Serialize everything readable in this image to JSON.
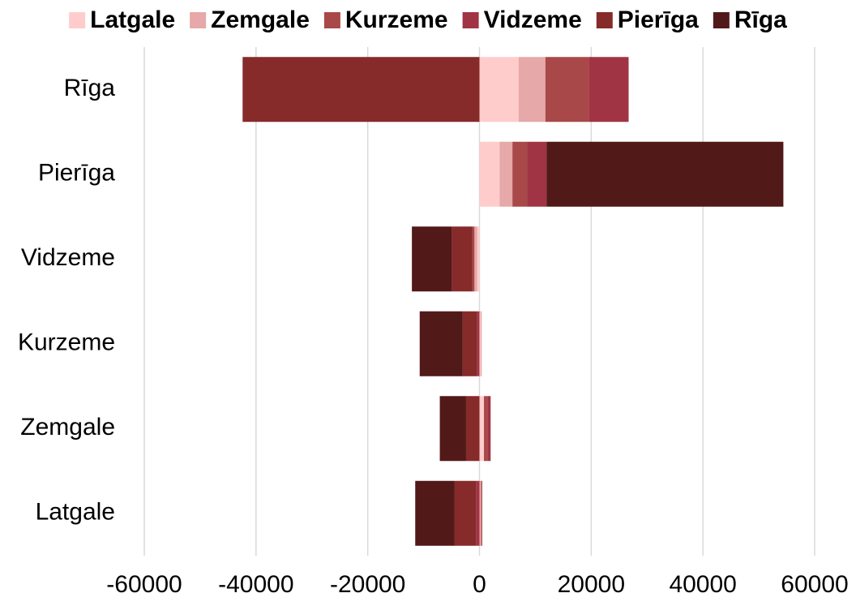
{
  "chart_data": {
    "type": "bar",
    "orientation": "horizontal",
    "stacked": true,
    "categories": [
      "Rīga",
      "Pierīga",
      "Vidzeme",
      "Kurzeme",
      "Zemgale",
      "Latgale"
    ],
    "series": [
      {
        "name": "Latgale",
        "color": "#ffcccc",
        "values": [
          7000,
          3600,
          -400,
          200,
          800,
          0
        ]
      },
      {
        "name": "Zemgale",
        "color": "#e6a8a8",
        "values": [
          4800,
          2300,
          -500,
          200,
          0,
          300
        ]
      },
      {
        "name": "Kurzeme",
        "color": "#a94848",
        "values": [
          7800,
          2600,
          -400,
          0,
          600,
          200
        ]
      },
      {
        "name": "Vidzeme",
        "color": "#a13444",
        "values": [
          7100,
          3500,
          0,
          -400,
          600,
          -600
        ]
      },
      {
        "name": "Pierīga",
        "color": "#862a2a",
        "values": [
          -42400,
          0,
          -3700,
          -2600,
          -2400,
          -3900
        ]
      },
      {
        "name": "Rīga",
        "color": "#521919",
        "values": [
          0,
          42400,
          -7100,
          -7700,
          -4700,
          -7000
        ]
      }
    ],
    "xlim": [
      -60000,
      60000
    ],
    "xticks": [
      -60000,
      -40000,
      -20000,
      0,
      20000,
      40000,
      60000
    ],
    "grid": true,
    "legend": "top"
  }
}
